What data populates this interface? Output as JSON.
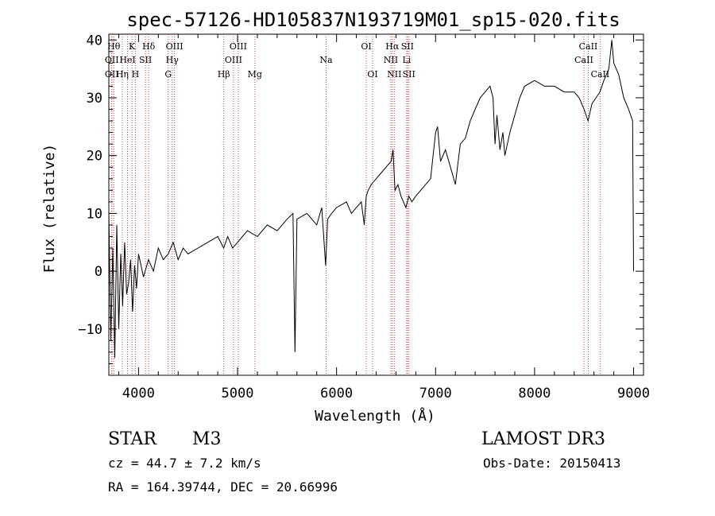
{
  "chart_data": {
    "type": "line",
    "title": "spec-57126-HD105837N193719M01_sp15-020.fits",
    "xlabel": "Wavelength (Å)",
    "ylabel": "Flux (relative)",
    "xlim": [
      3700,
      9100
    ],
    "ylim": [
      -18,
      41
    ],
    "xticks": [
      4000,
      5000,
      6000,
      7000,
      8000,
      9000
    ],
    "yticks": [
      -10,
      0,
      10,
      20,
      30,
      40
    ],
    "grid": false,
    "series": [
      {
        "color": "#000000",
        "x": [
          3700,
          3720,
          3740,
          3760,
          3780,
          3800,
          3820,
          3840,
          3860,
          3880,
          3900,
          3920,
          3940,
          3960,
          3980,
          4000,
          4050,
          4100,
          4150,
          4200,
          4250,
          4300,
          4350,
          4400,
          4450,
          4500,
          4600,
          4700,
          4800,
          4860,
          4900,
          4950,
          5000,
          5100,
          5200,
          5300,
          5400,
          5500,
          5560,
          5580,
          5600,
          5700,
          5800,
          5850,
          5890,
          5910,
          5950,
          6000,
          6100,
          6150,
          6200,
          6250,
          6280,
          6300,
          6320,
          6350,
          6400,
          6450,
          6500,
          6550,
          6570,
          6590,
          6620,
          6650,
          6700,
          6730,
          6760,
          6800,
          6850,
          6900,
          6950,
          7000,
          7020,
          7050,
          7100,
          7150,
          7200,
          7250,
          7300,
          7350,
          7400,
          7450,
          7500,
          7550,
          7580,
          7600,
          7620,
          7650,
          7680,
          7700,
          7750,
          7800,
          7850,
          7900,
          8000,
          8100,
          8200,
          8300,
          8400,
          8450,
          8500,
          8540,
          8580,
          8620,
          8660,
          8700,
          8750,
          8780,
          8800,
          8850,
          8900,
          8950,
          8990,
          9000
        ],
        "y": [
          10,
          -12,
          4,
          -15,
          8,
          -10,
          3,
          -6,
          5,
          -4,
          -2,
          2,
          -7,
          1,
          -3,
          3,
          -1,
          2,
          0,
          4,
          2,
          3,
          5,
          2,
          4,
          3,
          4,
          5,
          6,
          4,
          6,
          4,
          5,
          7,
          6,
          8,
          7,
          9,
          10,
          -14,
          9,
          10,
          8,
          11,
          1,
          9,
          10,
          11,
          12,
          10,
          11,
          12,
          8,
          13,
          14,
          15,
          16,
          17,
          18,
          19,
          21,
          14,
          15,
          13,
          11,
          13,
          12,
          13,
          14,
          15,
          16,
          24,
          25,
          19,
          21,
          18,
          15,
          22,
          23,
          26,
          28,
          30,
          31,
          32,
          30,
          22,
          27,
          21,
          24,
          20,
          24,
          27,
          30,
          32,
          33,
          32,
          32,
          31,
          31,
          30,
          28,
          26,
          29,
          30,
          31,
          33,
          35,
          40,
          36,
          34,
          30,
          28,
          26,
          0
        ]
      }
    ],
    "line_labels": [
      {
        "wl": 3750,
        "label": "Hθ",
        "row": 0
      },
      {
        "wl": 3730,
        "label": "OII",
        "row": 1
      },
      {
        "wl": 3730,
        "label": "OII",
        "row": 2
      },
      {
        "wl": 3836,
        "label": "Hη",
        "row": 2
      },
      {
        "wl": 3889,
        "label": "HeI",
        "row": 1
      },
      {
        "wl": 3934,
        "label": "K",
        "row": 0
      },
      {
        "wl": 3968,
        "label": "H",
        "row": 2
      },
      {
        "wl": 4070,
        "label": "SII",
        "row": 1
      },
      {
        "wl": 4102,
        "label": "Hδ",
        "row": 0
      },
      {
        "wl": 4300,
        "label": "G",
        "row": 2
      },
      {
        "wl": 4340,
        "label": "Hγ",
        "row": 1
      },
      {
        "wl": 4363,
        "label": "OIII",
        "row": 0
      },
      {
        "wl": 4861,
        "label": "Hβ",
        "row": 2
      },
      {
        "wl": 4959,
        "label": "OIII",
        "row": 1
      },
      {
        "wl": 5007,
        "label": "OIII",
        "row": 0
      },
      {
        "wl": 5175,
        "label": "Mg",
        "row": 2
      },
      {
        "wl": 5894,
        "label": "Na",
        "row": 1
      },
      {
        "wl": 6300,
        "label": "OI",
        "row": 0
      },
      {
        "wl": 6364,
        "label": "OI",
        "row": 2
      },
      {
        "wl": 6548,
        "label": "NII",
        "row": 1
      },
      {
        "wl": 6563,
        "label": "Hα",
        "row": 0
      },
      {
        "wl": 6583,
        "label": "NII",
        "row": 2
      },
      {
        "wl": 6708,
        "label": "Li",
        "row": 1
      },
      {
        "wl": 6716,
        "label": "SII",
        "row": 0
      },
      {
        "wl": 6731,
        "label": "SII",
        "row": 2
      },
      {
        "wl": 8498,
        "label": "CaII",
        "row": 1
      },
      {
        "wl": 8542,
        "label": "CaII",
        "row": 0
      },
      {
        "wl": 8662,
        "label": "CaII",
        "row": 2
      }
    ]
  },
  "info": {
    "class": "STAR",
    "subclass": "M3",
    "cz": "cz = 44.7 ± 7.2 km/s",
    "radec": "RA = 164.39744, DEC =  20.66996",
    "survey": "LAMOST DR3",
    "obsdate": "Obs-Date: 20150413"
  }
}
